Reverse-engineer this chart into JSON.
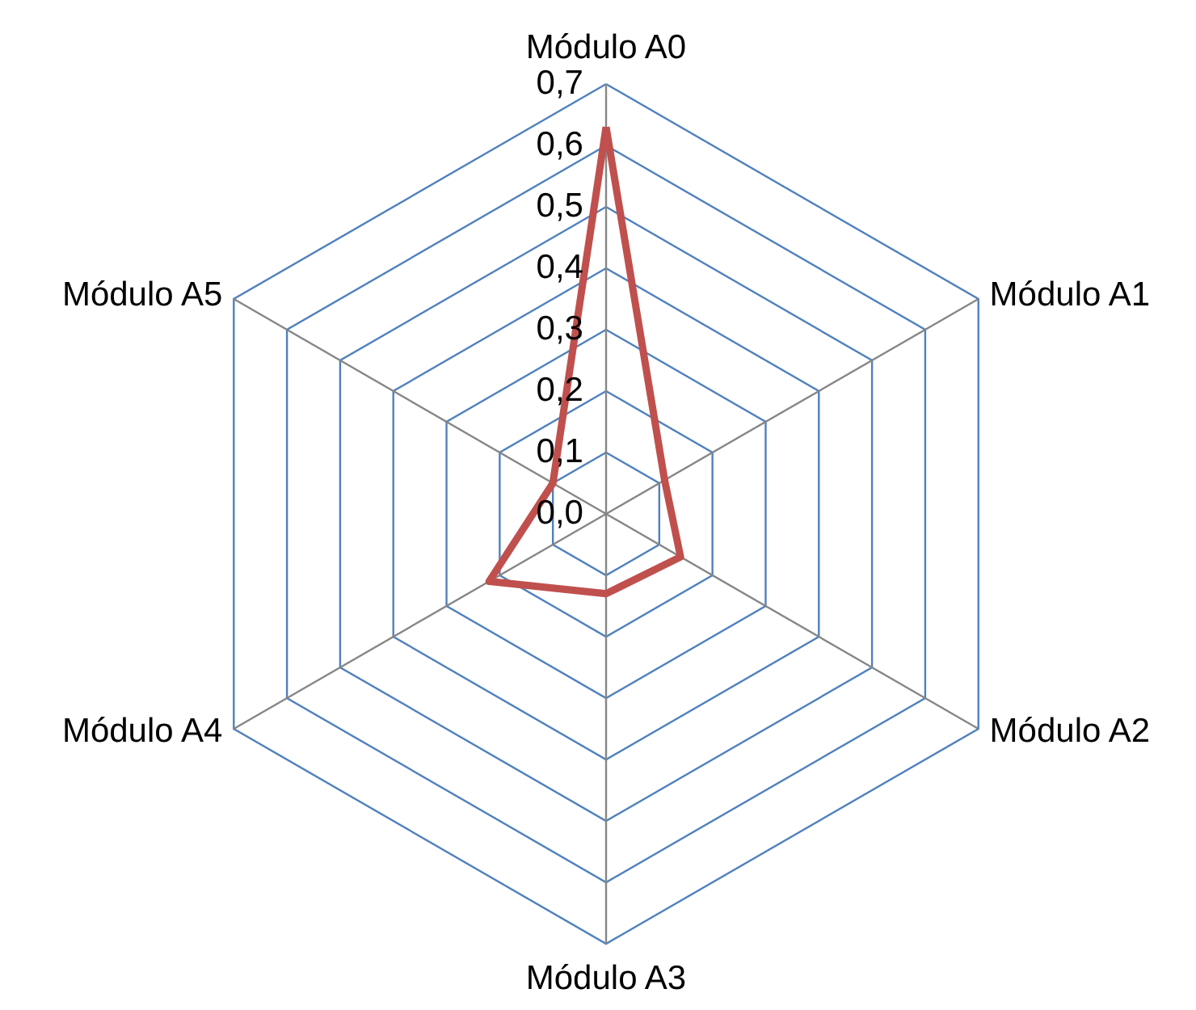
{
  "chart_data": {
    "type": "radar",
    "categories": [
      "Módulo A0",
      "Módulo A1",
      "Módulo A2",
      "Módulo A3",
      "Módulo A4",
      "Módulo A5"
    ],
    "series": [
      {
        "color": "#c0504d",
        "values": [
          0.63,
          0.11,
          0.14,
          0.13,
          0.22,
          0.1
        ]
      }
    ],
    "ylim": [
      0,
      0.7
    ],
    "yticks": [
      {
        "value": 0,
        "label": "0,0"
      },
      {
        "value": 0.1,
        "label": "0,1"
      },
      {
        "value": 0.2,
        "label": "0,2"
      },
      {
        "value": 0.3,
        "label": "0,3"
      },
      {
        "value": 0.4,
        "label": "0,4"
      },
      {
        "value": 0.5,
        "label": "0,5"
      },
      {
        "value": 0.6,
        "label": "0,6"
      },
      {
        "value": 0.7,
        "label": "0,7"
      }
    ],
    "grid": true,
    "marker": "none",
    "line_style": "solid"
  }
}
